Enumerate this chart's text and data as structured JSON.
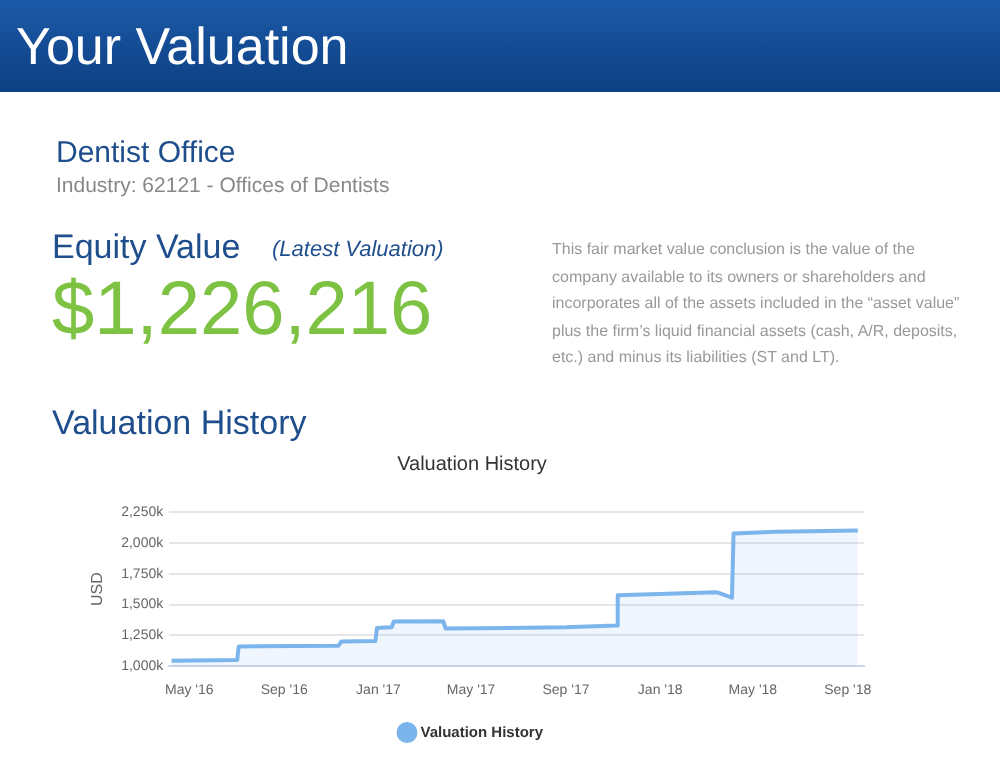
{
  "chart_data": {
    "type": "area",
    "title": "Valuation History",
    "ylabel": "USD",
    "annotations": [
      "Your Valuation",
      "Dentist Office",
      "Industry: 62121 - Offices of Dentists",
      "Equity Value",
      "(Latest Valuation)",
      "$1,226,216",
      "This fair market value conclusion is the value of the company available to its owners or shareholders and incorporates all of the assets included in the “asset value” plus the firm’s liquid financial assets (cash, A/R, deposits, etc.) and minus its liabilities (ST and LT).",
      "Valuation History"
    ],
    "x": [
      "2016-04-08",
      "2016-07-02",
      "2016-07-04",
      "2016-11-10",
      "2016-11-14",
      "2016-12-28",
      "2016-12-30",
      "2017-01-18",
      "2017-01-21",
      "2017-03-26",
      "2017-03-29",
      "2017-09-01",
      "2017-11-05",
      "2017-11-07",
      "2018-03-15",
      "2018-04-04",
      "2018-04-06",
      "2018-06-01",
      "2018-09-14"
    ],
    "series": [
      {
        "name": "Valuation History",
        "color": "#7cb5ec",
        "values": [
          1045000,
          1050000,
          1160000,
          1165000,
          1200000,
          1205000,
          1310000,
          1315000,
          1362000,
          1365000,
          1305000,
          1315000,
          1330000,
          1575000,
          1600000,
          1555000,
          2075000,
          2090000,
          2100000
        ]
      }
    ],
    "xlim": [
      "2016-04-05",
      "2018-09-22"
    ],
    "xticks": [
      {
        "value": "2016-05-01",
        "label": "May '16"
      },
      {
        "value": "2016-09-01",
        "label": "Sep '16"
      },
      {
        "value": "2017-01-01",
        "label": "Jan '17"
      },
      {
        "value": "2017-05-01",
        "label": "May '17"
      },
      {
        "value": "2017-09-01",
        "label": "Sep '17"
      },
      {
        "value": "2018-01-01",
        "label": "Jan '18"
      },
      {
        "value": "2018-05-01",
        "label": "May '18"
      },
      {
        "value": "2018-09-01",
        "label": "Sep '18"
      }
    ],
    "ylim": [
      1000000,
      2250000
    ],
    "yticks": [
      {
        "value": 1000000,
        "label": "1,000k"
      },
      {
        "value": 1250000,
        "label": "1,250k"
      },
      {
        "value": 1500000,
        "label": "1,500k"
      },
      {
        "value": 1750000,
        "label": "1,750k"
      },
      {
        "value": 2000000,
        "label": "2,000k"
      },
      {
        "value": 2250000,
        "label": "2,250k"
      }
    ],
    "grid": "y",
    "legend": "bottom",
    "marker": "none",
    "line_style": "solid"
  }
}
